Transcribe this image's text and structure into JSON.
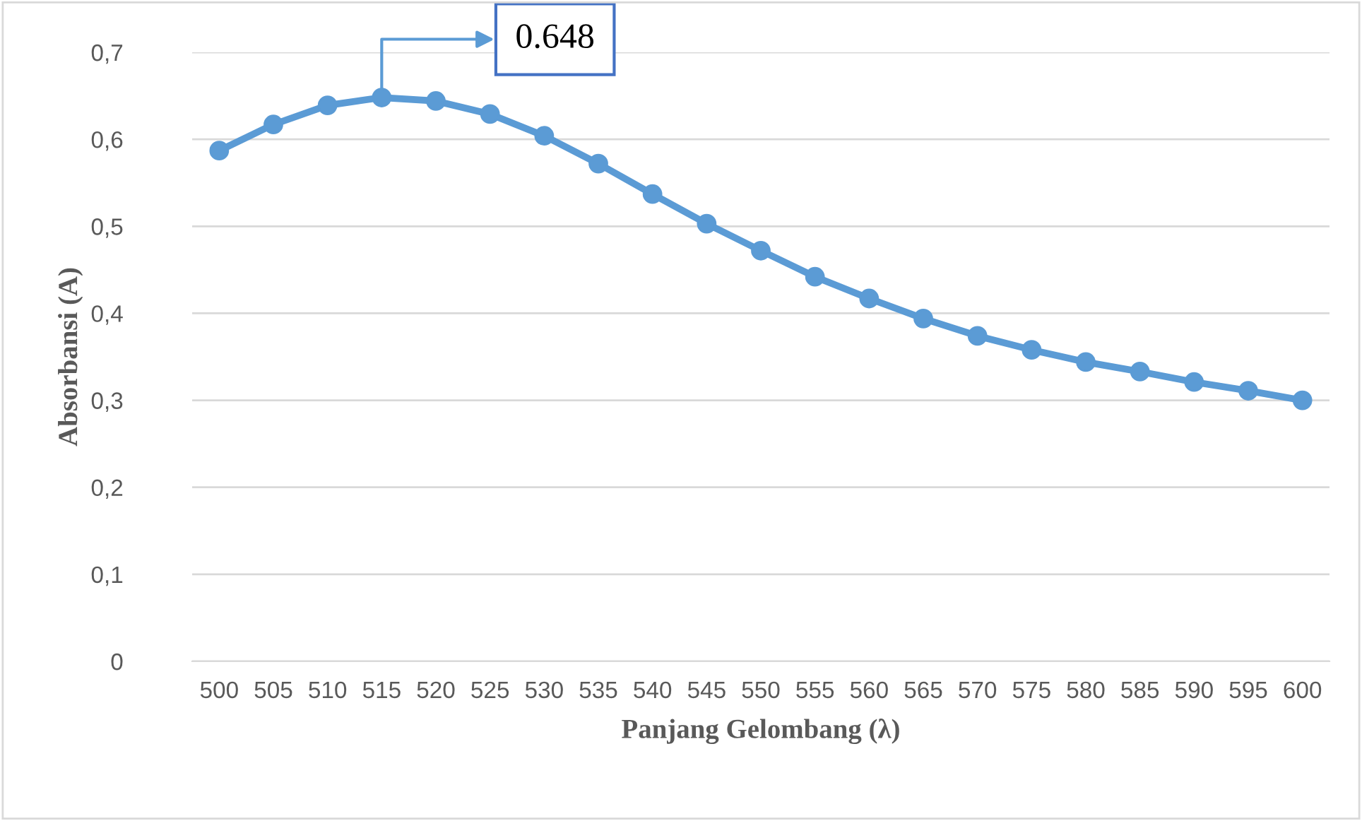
{
  "chart_data": {
    "type": "line",
    "xlabel": "Panjang Gelombang (λ)",
    "ylabel": "Absorbansi (A)",
    "categories": [
      "500",
      "505",
      "510",
      "515",
      "520",
      "525",
      "530",
      "535",
      "540",
      "545",
      "550",
      "555",
      "560",
      "565",
      "570",
      "575",
      "580",
      "585",
      "590",
      "595",
      "600"
    ],
    "series": [
      {
        "color": "#5b9bd5",
        "values": [
          0.587,
          0.617,
          0.639,
          0.648,
          0.644,
          0.629,
          0.604,
          0.572,
          0.537,
          0.503,
          0.472,
          0.442,
          0.417,
          0.394,
          0.374,
          0.358,
          0.344,
          0.333,
          0.321,
          0.311,
          0.3
        ]
      }
    ],
    "ylim": [
      0,
      0.7
    ],
    "yticks": [
      {
        "value": 0,
        "label": "0"
      },
      {
        "value": 0.1,
        "label": "0,1"
      },
      {
        "value": 0.2,
        "label": "0,2"
      },
      {
        "value": 0.3,
        "label": "0,3"
      },
      {
        "value": 0.4,
        "label": "0,4"
      },
      {
        "value": 0.5,
        "label": "0,5"
      },
      {
        "value": 0.6,
        "label": "0,6"
      },
      {
        "value": 0.7,
        "label": "0,7"
      }
    ],
    "grid": "y",
    "marker": "circle",
    "line_style": "solid",
    "legend": false,
    "annotations": [
      {
        "text": "0.648",
        "x": "515",
        "y": 0.648
      }
    ]
  }
}
